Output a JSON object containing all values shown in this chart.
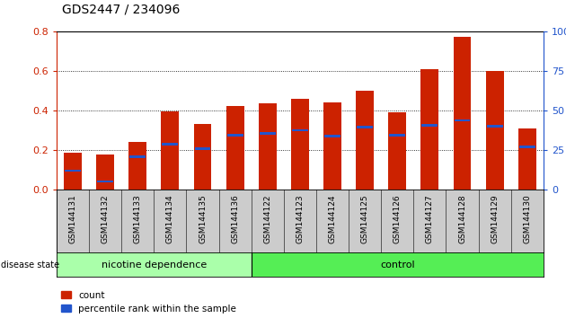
{
  "title": "GDS2447 / 234096",
  "samples": [
    "GSM144131",
    "GSM144132",
    "GSM144133",
    "GSM144134",
    "GSM144135",
    "GSM144136",
    "GSM144122",
    "GSM144123",
    "GSM144124",
    "GSM144125",
    "GSM144126",
    "GSM144127",
    "GSM144128",
    "GSM144129",
    "GSM144130"
  ],
  "bar_heights": [
    0.185,
    0.175,
    0.24,
    0.395,
    0.33,
    0.425,
    0.435,
    0.46,
    0.44,
    0.5,
    0.39,
    0.61,
    0.775,
    0.6,
    0.31
  ],
  "percentile_values": [
    0.095,
    0.04,
    0.165,
    0.23,
    0.205,
    0.275,
    0.285,
    0.3,
    0.27,
    0.315,
    0.275,
    0.325,
    0.35,
    0.32,
    0.215
  ],
  "bar_color": "#cc2200",
  "percentile_color": "#2255cc",
  "ylim_left": [
    0,
    0.8
  ],
  "ylim_right": [
    0,
    100
  ],
  "yticks_left": [
    0,
    0.2,
    0.4,
    0.6,
    0.8
  ],
  "yticks_right": [
    0,
    25,
    50,
    75,
    100
  ],
  "group_labels": [
    "nicotine dependence",
    "control"
  ],
  "group_ranges": [
    [
      0,
      6
    ],
    [
      6,
      15
    ]
  ],
  "nd_color": "#aaffaa",
  "ctrl_color": "#55ee55",
  "disease_state_label": "disease state",
  "legend_items": [
    "count",
    "percentile rank within the sample"
  ],
  "bar_width": 0.55,
  "bg_color": "#ffffff",
  "plot_bg_color": "#ffffff",
  "tick_label_color_left": "#cc2200",
  "tick_label_color_right": "#2255cc",
  "grid_color": "#000000",
  "header_bg": "#cccccc",
  "title_fontsize": 10,
  "tick_fontsize": 8,
  "label_fontsize": 6.5
}
